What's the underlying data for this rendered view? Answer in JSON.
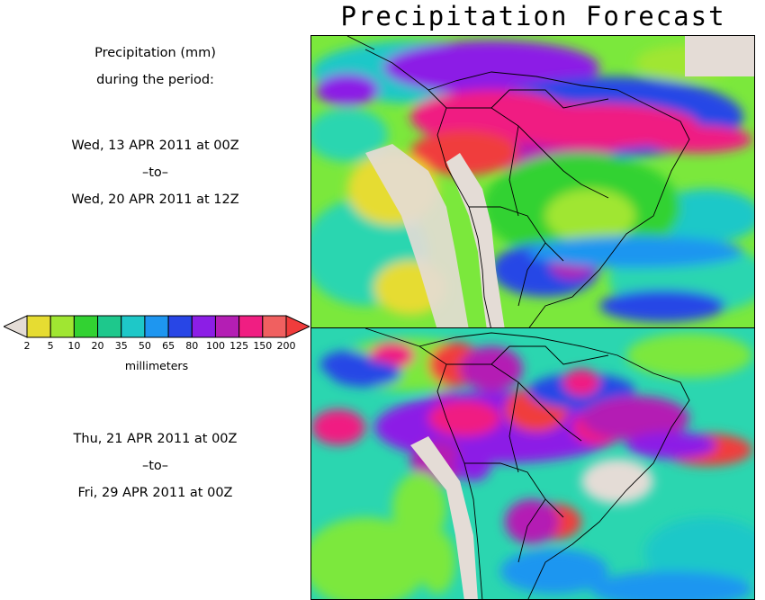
{
  "title": "Precipitation Forecast",
  "header": {
    "line1": "Precipitation (mm)",
    "line2": "during the period:"
  },
  "period1": {
    "start": "Wed, 13 APR 2011 at 00Z",
    "sep": "–to–",
    "end": "Wed, 20 APR 2011 at 12Z"
  },
  "period2": {
    "start": "Thu, 21 APR 2011 at 00Z",
    "sep": "–to–",
    "end": "Fri, 29 APR 2011 at 00Z"
  },
  "legend": {
    "unit": "millimeters",
    "ticks": [
      "2",
      "5",
      "10",
      "20",
      "35",
      "50",
      "65",
      "80",
      "100",
      "125",
      "150",
      "200"
    ],
    "colors": [
      "#e4dcd6",
      "#e6dc32",
      "#a0e632",
      "#32d232",
      "#1ec88c",
      "#1ec8c8",
      "#1e96f0",
      "#2846e6",
      "#8c1ee6",
      "#b41eb4",
      "#f01e82",
      "#f06060",
      "#f03c3c"
    ]
  },
  "map_colors": {
    "ocean_green": "#7be83c",
    "ocean_cyan": "#2bd6b0",
    "land_dry": "#e4dcd6",
    "yellow": "#e6dc32"
  }
}
